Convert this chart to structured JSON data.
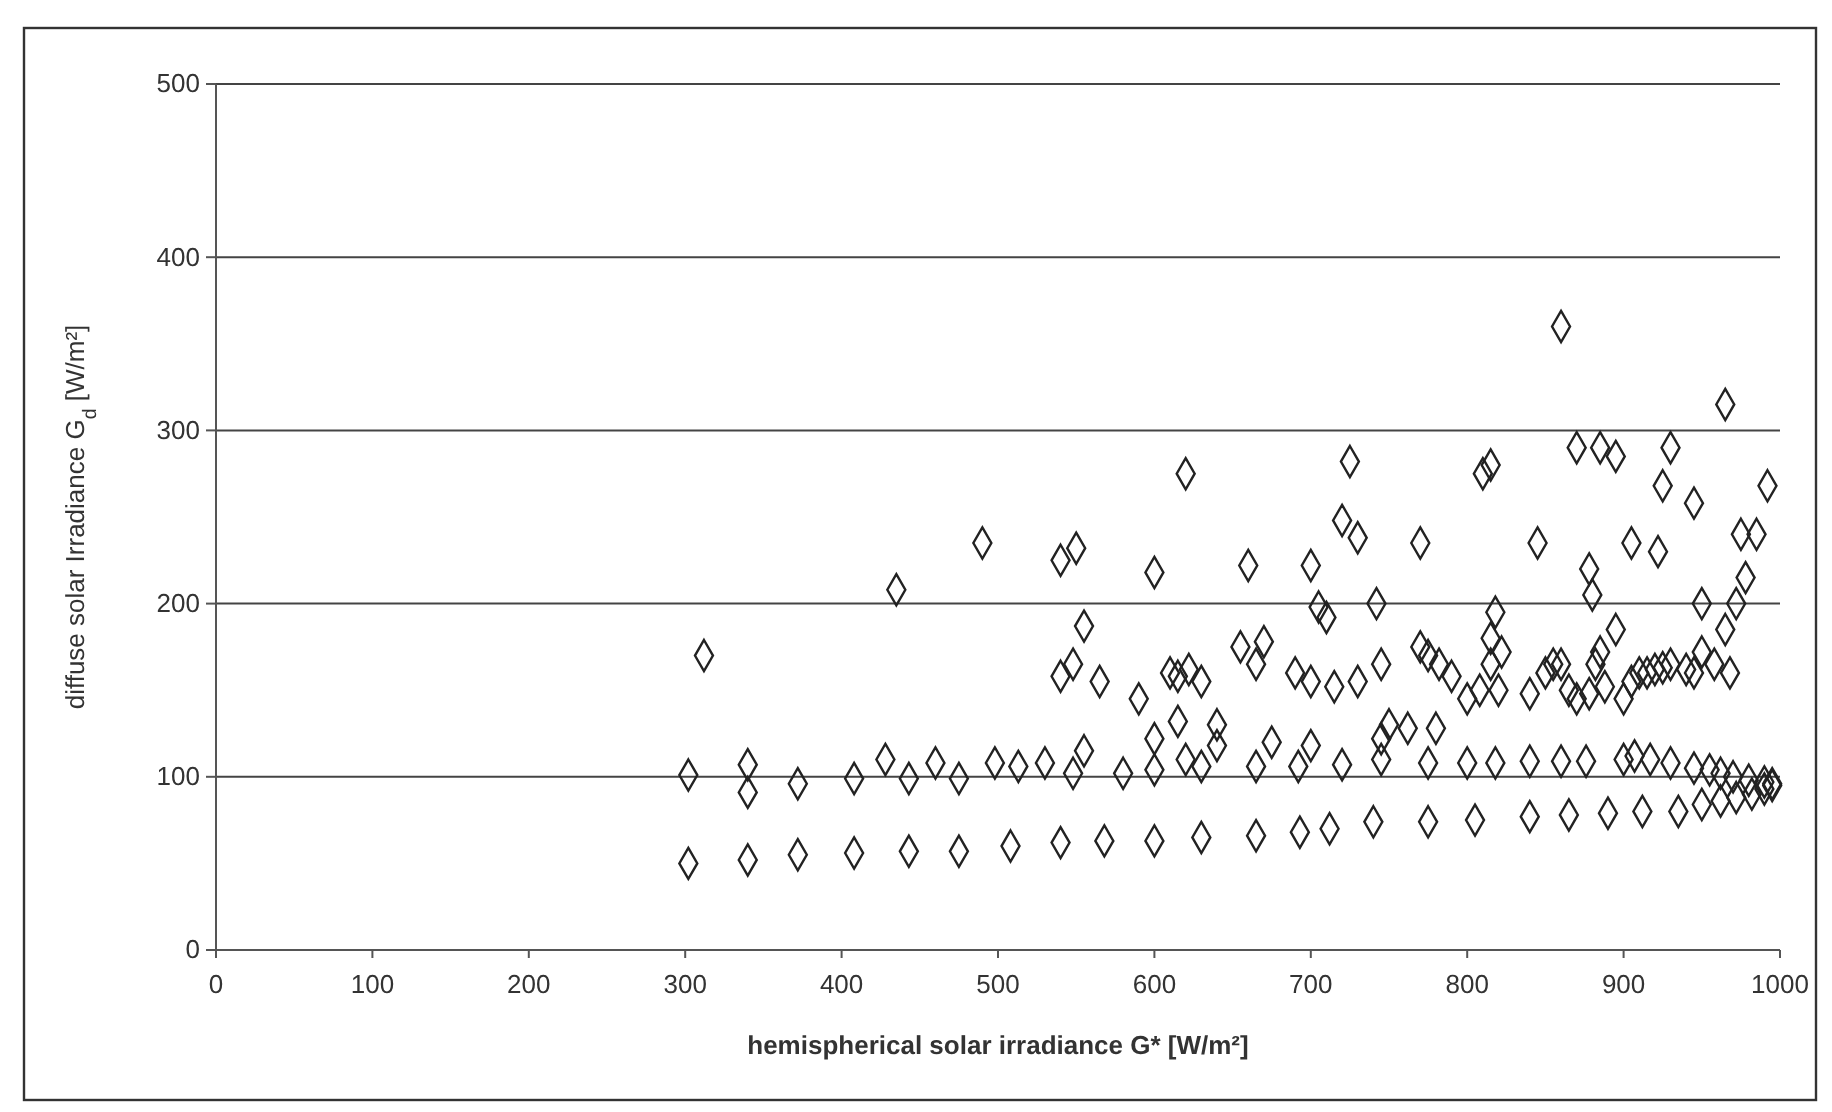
{
  "chart_data": {
    "type": "scatter",
    "xlabel": "hemispherical solar irradiance G* [W/m²]",
    "ylabel": "diffuse solar Irradiance G$_{d}$ [W/m²]",
    "xlim": [
      0,
      1000
    ],
    "xticks": [
      0,
      100,
      200,
      300,
      400,
      500,
      600,
      700,
      800,
      900,
      1000
    ],
    "ylim": [
      0,
      500
    ],
    "yticks": [
      0,
      100,
      200,
      300,
      400,
      500
    ],
    "grid": "y",
    "marker": "diamond",
    "series": [
      {
        "color": "#222222",
        "x": [
          302,
          340,
          372,
          408,
          443,
          475,
          508,
          540,
          568,
          600,
          630,
          665,
          693,
          712,
          740,
          775,
          805,
          840,
          865,
          890,
          912,
          935,
          950,
          962,
          972,
          982,
          990,
          995,
          302,
          340,
          340,
          372,
          408,
          428,
          443,
          460,
          475,
          498,
          513,
          530,
          548,
          555,
          580,
          600,
          600,
          615,
          620,
          630,
          640,
          665,
          675,
          692,
          700,
          720,
          745,
          745,
          775,
          780,
          800,
          818,
          840,
          860,
          876,
          900,
          907,
          917,
          930,
          945,
          955,
          962,
          970,
          980,
          990,
          995,
          540,
          548,
          555,
          565,
          590,
          610,
          615,
          622,
          630,
          640,
          655,
          665,
          670,
          690,
          700,
          715,
          730,
          745,
          750,
          762,
          770,
          775,
          782,
          790,
          800,
          808,
          815,
          815,
          818,
          820,
          822,
          840,
          850,
          855,
          860,
          865,
          870,
          878,
          882,
          885,
          888,
          895,
          900,
          905,
          910,
          915,
          920,
          925,
          930,
          940,
          945,
          950,
          958,
          965,
          968,
          972,
          978,
          985,
          312,
          435,
          490,
          540,
          550,
          600,
          620,
          660,
          700,
          705,
          710,
          720,
          725,
          730,
          742,
          770,
          810,
          815,
          845,
          860,
          870,
          885,
          895,
          905,
          878,
          880,
          922,
          925,
          930,
          945,
          950,
          965,
          975,
          992
        ],
        "values": [
          50,
          52,
          55,
          56,
          57,
          57,
          60,
          62,
          63,
          63,
          65,
          66,
          68,
          70,
          74,
          74,
          75,
          77,
          78,
          79,
          80,
          80,
          84,
          86,
          88,
          90,
          93,
          95,
          101,
          107,
          91,
          96,
          99,
          110,
          99,
          108,
          99,
          108,
          106,
          108,
          102,
          115,
          102,
          104,
          122,
          132,
          110,
          106,
          118,
          106,
          120,
          106,
          118,
          107,
          110,
          122,
          108,
          128,
          108,
          108,
          109,
          109,
          109,
          110,
          112,
          110,
          108,
          105,
          104,
          102,
          100,
          98,
          97,
          96,
          158,
          165,
          187,
          155,
          145,
          160,
          158,
          162,
          155,
          130,
          175,
          165,
          178,
          160,
          155,
          152,
          155,
          165,
          130,
          128,
          175,
          170,
          165,
          158,
          145,
          150,
          180,
          165,
          195,
          150,
          172,
          148,
          160,
          165,
          165,
          150,
          145,
          148,
          165,
          172,
          152,
          185,
          145,
          155,
          160,
          160,
          162,
          163,
          165,
          162,
          160,
          172,
          165,
          185,
          160,
          200,
          215,
          240,
          170,
          208,
          235,
          225,
          232,
          218,
          275,
          222,
          222,
          198,
          192,
          248,
          282,
          238,
          200,
          235,
          275,
          280,
          235,
          360,
          290,
          290,
          285,
          235,
          220,
          205,
          230,
          268,
          290,
          258,
          200,
          315,
          240,
          268
        ]
      }
    ]
  }
}
